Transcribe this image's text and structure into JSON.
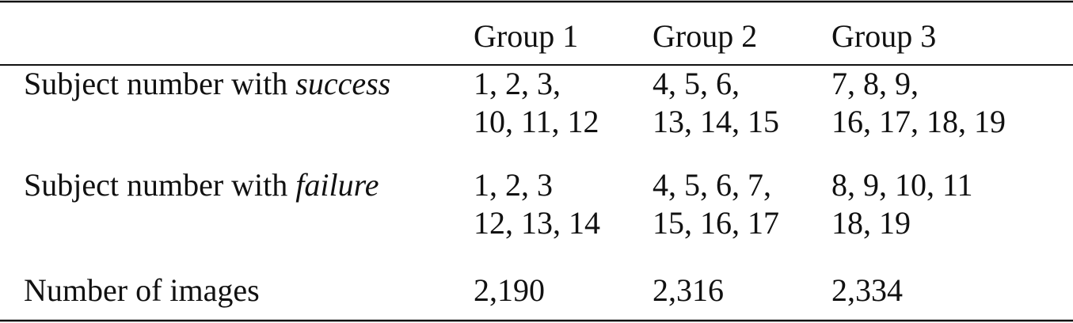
{
  "table": {
    "columns": [
      "Group 1",
      "Group 2",
      "Group 3"
    ],
    "rows": [
      {
        "label": "Subject number with",
        "emphasis": "success",
        "cells": [
          [
            "1, 2, 3,",
            "10, 11, 12"
          ],
          [
            "4, 5, 6,",
            "13, 14, 15"
          ],
          [
            "7, 8, 9,",
            "16, 17, 18, 19"
          ]
        ]
      },
      {
        "label": "Subject number with",
        "emphasis": "failure",
        "cells": [
          [
            "1, 2, 3",
            "12, 13, 14"
          ],
          [
            "4, 5, 6, 7,",
            "15, 16, 17"
          ],
          [
            "8, 9, 10, 11",
            "18, 19"
          ]
        ]
      },
      {
        "label": "Number of images",
        "cells": [
          [
            "2,190"
          ],
          [
            "2,316"
          ],
          [
            "2,334"
          ]
        ]
      }
    ]
  }
}
